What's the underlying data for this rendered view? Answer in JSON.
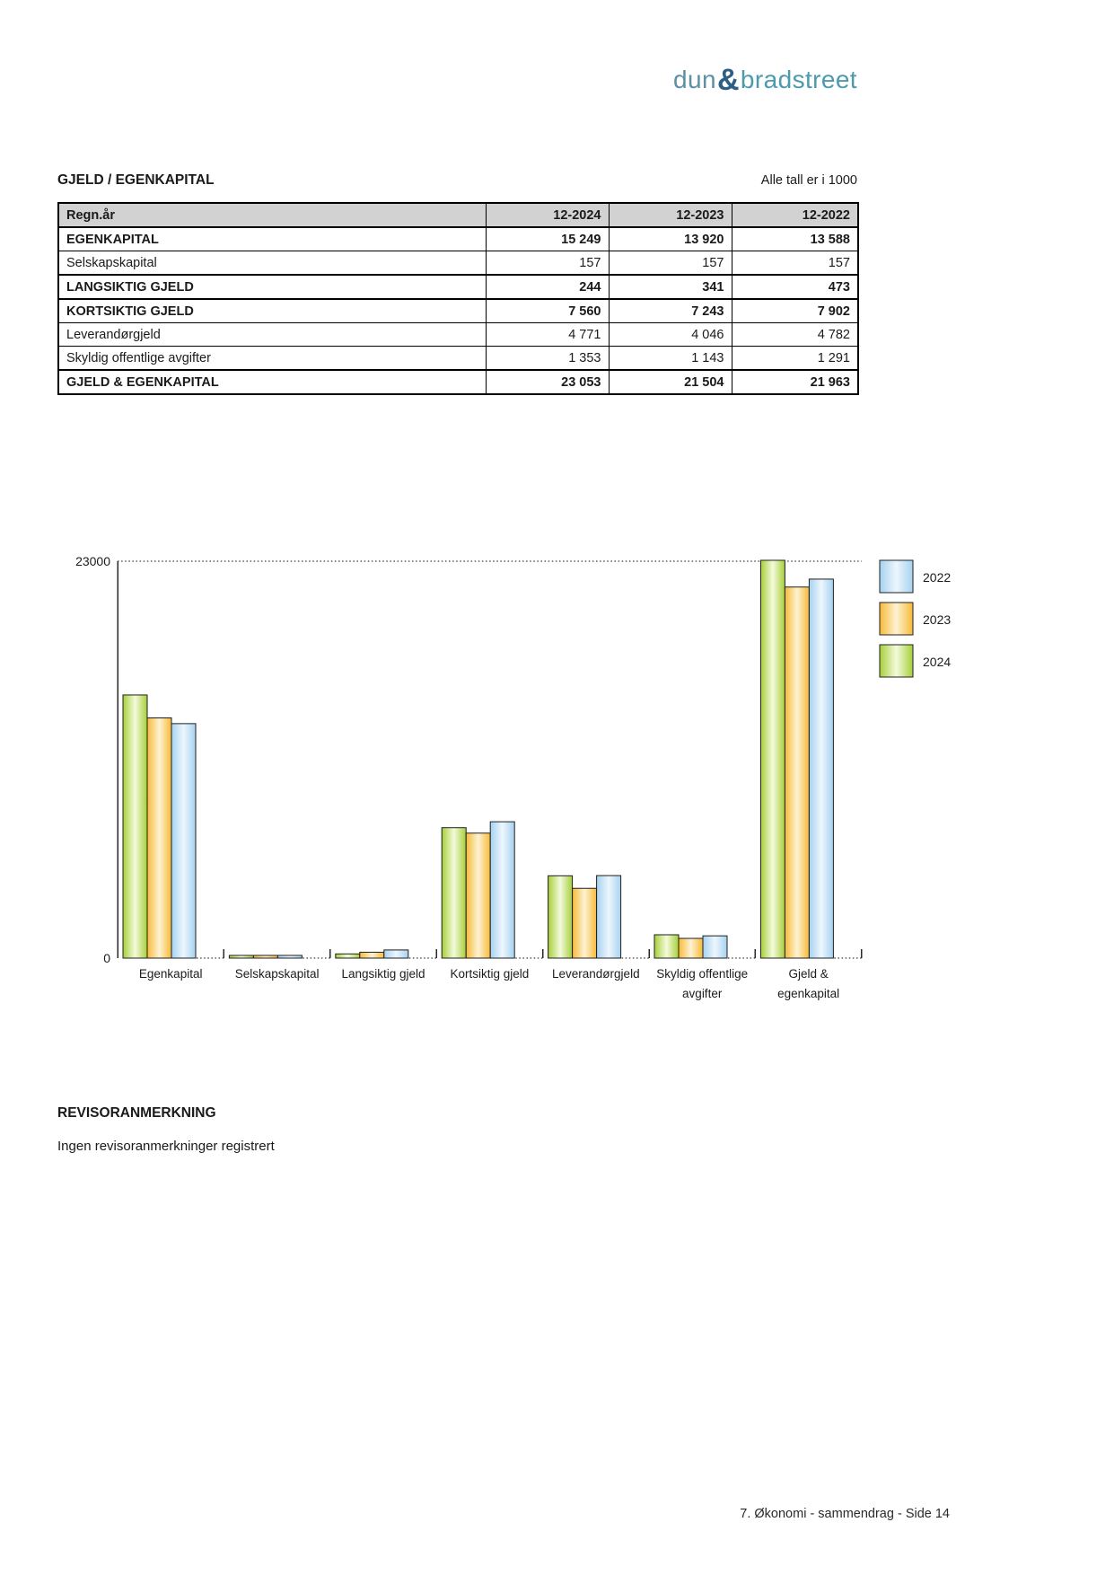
{
  "brand": {
    "dun": "dun",
    "amp": "&",
    "bradstreet": "bradstreet",
    "colors": {
      "dun": "#5d90a3",
      "amp": "#2d5f85",
      "bradstreet": "#4d9aad"
    }
  },
  "section": {
    "title": "GJELD / EGENKAPITAL",
    "units_note": "Alle tall er i 1000"
  },
  "table": {
    "header": [
      "Regn.år",
      "12-2024",
      "12-2023",
      "12-2022"
    ],
    "rows": [
      {
        "label": "EGENKAPITAL",
        "values": [
          "15 249",
          "13 920",
          "13 588"
        ],
        "emphasis": true
      },
      {
        "label": "Selskapskapital",
        "values": [
          "157",
          "157",
          "157"
        ],
        "emphasis": false
      },
      {
        "label": "LANGSIKTIG GJELD",
        "values": [
          "244",
          "341",
          "473"
        ],
        "emphasis": true
      },
      {
        "label": "KORTSIKTIG GJELD",
        "values": [
          "7 560",
          "7 243",
          "7 902"
        ],
        "emphasis": true
      },
      {
        "label": "Leverandørgjeld",
        "values": [
          "4 771",
          "4 046",
          "4 782"
        ],
        "emphasis": false
      },
      {
        "label": "Skyldig offentlige avgifter",
        "values": [
          "1 353",
          "1 143",
          "1 291"
        ],
        "emphasis": false
      },
      {
        "label": "GJELD & EGENKAPITAL",
        "values": [
          "23 053",
          "21 504",
          "21 963"
        ],
        "emphasis": true
      }
    ]
  },
  "chart_data": {
    "type": "bar",
    "title": "",
    "xlabel": "",
    "ylabel": "",
    "ylim": [
      0,
      23000
    ],
    "yticks": [
      0,
      23000
    ],
    "grid": "dotted-line-at-23000",
    "legend_position": "right",
    "legend": [
      "2022",
      "2023",
      "2024"
    ],
    "categories": [
      "Egenkapital",
      "Selskapskapital",
      "Langsiktig gjeld",
      "Kortsiktig gjeld",
      "Leverandørgjeld",
      "Skyldig offentlige avgifter",
      "Gjeld & egenkapital"
    ],
    "series": [
      {
        "name": "2024",
        "color": "#a6cf39",
        "color_light": "#f3fadc",
        "values": [
          15249,
          157,
          244,
          7560,
          4771,
          1353,
          23053
        ]
      },
      {
        "name": "2023",
        "color": "#f7ba38",
        "color_light": "#fdf2d2",
        "values": [
          13920,
          157,
          341,
          7243,
          4046,
          1143,
          21504
        ]
      },
      {
        "name": "2022",
        "color": "#a5d2f0",
        "color_light": "#edf6fd",
        "values": [
          13588,
          157,
          473,
          7902,
          4782,
          1291,
          21963
        ]
      }
    ]
  },
  "auditor": {
    "heading": "REVISORANMERKNING",
    "body": "Ingen revisoranmerkninger registrert"
  },
  "footer": {
    "text": "7. Økonomi - sammendrag - Side 14"
  }
}
